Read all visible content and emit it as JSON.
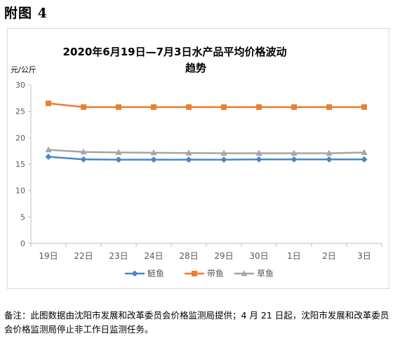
{
  "page": {
    "heading": "附图 4",
    "note": "备注：此图数据由沈阳市发展和改革委员会价格监测局提供；4 月 21 日起，沈阳市发展和改革委员会价格监测局停止非工作日监测任务。"
  },
  "chart_data": {
    "type": "line",
    "title_line1": "2020年6月19日—7月3日水产品平均价格波动",
    "title_line2": "趋势",
    "ylabel": "元/公斤",
    "xlabel": "",
    "ylim": [
      0,
      30
    ],
    "yticks": [
      0,
      5,
      10,
      15,
      20,
      25,
      30
    ],
    "grid": false,
    "legend_position": "bottom",
    "categories": [
      "19日",
      "22日",
      "23日",
      "24日",
      "28日",
      "29日",
      "30日",
      "1日",
      "2日",
      "3日"
    ],
    "series": [
      {
        "name": "鲢鱼",
        "color": "#4a86c8",
        "marker": "diamond",
        "values": [
          16.4,
          15.9,
          15.85,
          15.85,
          15.85,
          15.85,
          15.9,
          15.9,
          15.9,
          15.9
        ]
      },
      {
        "name": "带鱼",
        "color": "#ed7d31",
        "marker": "square",
        "values": [
          26.5,
          25.8,
          25.8,
          25.8,
          25.8,
          25.8,
          25.8,
          25.8,
          25.8,
          25.8
        ]
      },
      {
        "name": "草鱼",
        "color": "#a5a5a5",
        "marker": "triangle",
        "values": [
          17.7,
          17.3,
          17.2,
          17.15,
          17.1,
          17.05,
          17.05,
          17.05,
          17.05,
          17.2
        ]
      }
    ]
  }
}
